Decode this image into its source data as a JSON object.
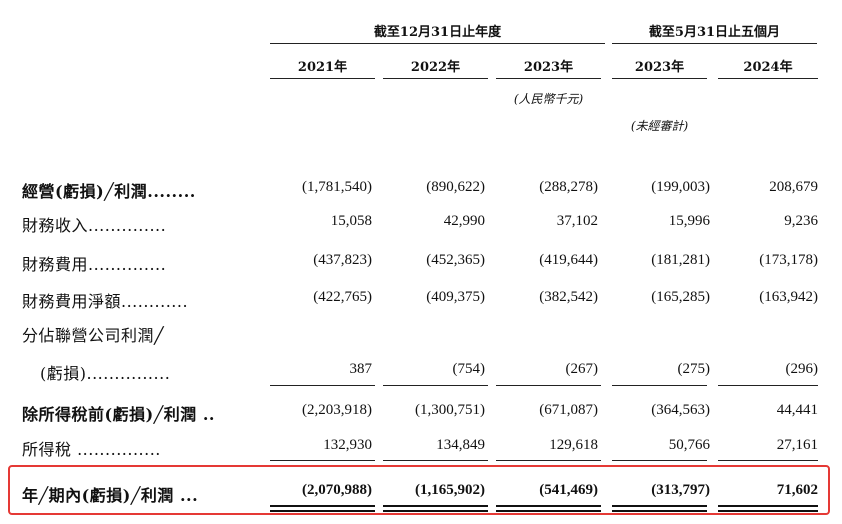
{
  "headers": {
    "group1": "截至12月31日止年度",
    "group2": "截至5月31日止五個月",
    "years": [
      "2021年",
      "2022年",
      "2023年",
      "2023年",
      "2024年"
    ],
    "unit_note": "(人民幣千元)",
    "unaudited_note": "(未經審計)"
  },
  "rows": [
    {
      "label": "經營(虧損)╱利潤........",
      "values": [
        "(1,781,540)",
        "(890,622)",
        "(288,278)",
        "(199,003)",
        "208,679"
      ]
    },
    {
      "label": "財務收入..............",
      "values": [
        "15,058",
        "42,990",
        "37,102",
        "15,996",
        "9,236"
      ]
    },
    {
      "label": "財務費用..............",
      "values": [
        "(437,823)",
        "(452,365)",
        "(419,644)",
        "(181,281)",
        "(173,178)"
      ]
    },
    {
      "label": "財務費用淨額............",
      "values": [
        "(422,765)",
        "(409,375)",
        "(382,542)",
        "(165,285)",
        "(163,942)"
      ]
    },
    {
      "label": "分佔聯營公司利潤╱",
      "values": [
        "",
        "",
        "",
        "",
        ""
      ]
    },
    {
      "label": "(虧損)...............",
      "values": [
        "387",
        "(754)",
        "(267)",
        "(275)",
        "(296)"
      ]
    },
    {
      "label": "除所得稅前(虧損)╱利潤 ..",
      "values": [
        "(2,203,918)",
        "(1,300,751)",
        "(671,087)",
        "(364,563)",
        "44,441"
      ]
    },
    {
      "label": "所得稅 ...............",
      "values": [
        "132,930",
        "134,849",
        "129,618",
        "50,766",
        "27,161"
      ]
    },
    {
      "label": "年╱期內(虧損)╱利潤 ...",
      "values": [
        "(2,070,988)",
        "(1,165,902)",
        "(541,469)",
        "(313,797)",
        "71,602"
      ]
    }
  ],
  "highlight_color": "#e53935"
}
